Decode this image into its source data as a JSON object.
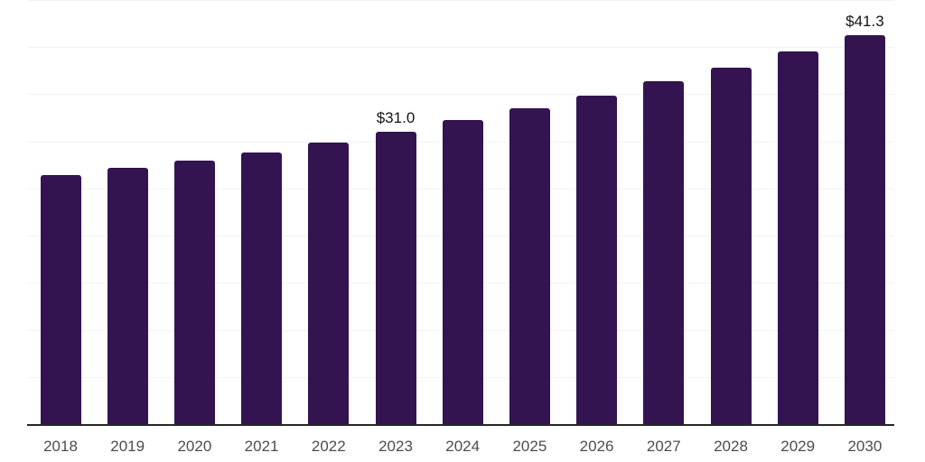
{
  "chart_data": {
    "type": "bar",
    "title": "",
    "xlabel": "",
    "ylabel": "",
    "categories": [
      "2018",
      "2019",
      "2020",
      "2021",
      "2022",
      "2023",
      "2024",
      "2025",
      "2026",
      "2027",
      "2028",
      "2029",
      "2030"
    ],
    "values": [
      26.4,
      27.2,
      28.0,
      28.8,
      29.9,
      31.0,
      32.3,
      33.5,
      34.9,
      36.4,
      37.8,
      39.5,
      41.3
    ],
    "annotations": [
      {
        "category": "2023",
        "text": "$31.0"
      },
      {
        "category": "2030",
        "text": "$41.3"
      }
    ],
    "ylim": [
      0,
      45
    ],
    "gridline_step": 5,
    "grid": "horizontal",
    "legend": "none",
    "y_tick_labels_visible": false,
    "colors": {
      "bar": "#331450",
      "gridline": "#f2f2f2",
      "axis_line": "#262626",
      "x_tick_label": "#4d4d4d",
      "annotation_text": "#141414",
      "background": "#ffffff"
    }
  }
}
